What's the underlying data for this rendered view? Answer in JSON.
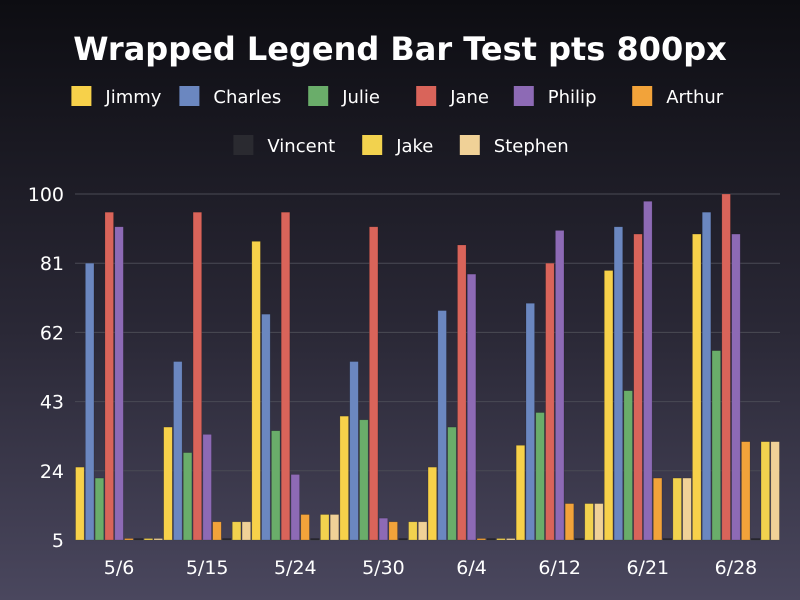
{
  "chart_data": {
    "type": "bar",
    "title": "Wrapped Legend Bar Test pts 800px",
    "xlabel": "",
    "ylabel": "",
    "ylim": [
      5,
      100
    ],
    "yticks": [
      5,
      24,
      43,
      62,
      81,
      100
    ],
    "grid": true,
    "legend_position": "top",
    "categories": [
      "5/6",
      "5/15",
      "5/24",
      "5/30",
      "6/4",
      "6/12",
      "6/21",
      "6/28"
    ],
    "series": [
      {
        "name": "Jimmy",
        "color": "#f7d14a",
        "values": [
          25,
          36,
          87,
          39,
          25,
          31,
          79,
          89
        ]
      },
      {
        "name": "Charles",
        "color": "#6b87c0",
        "values": [
          81,
          54,
          67,
          54,
          68,
          70,
          91,
          95
        ]
      },
      {
        "name": "Julie",
        "color": "#6aad6a",
        "values": [
          22,
          29,
          35,
          38,
          36,
          40,
          46,
          57
        ]
      },
      {
        "name": "Jane",
        "color": "#d9645a",
        "values": [
          95,
          95,
          95,
          91,
          86,
          81,
          89,
          100
        ]
      },
      {
        "name": "Philip",
        "color": "#8d6ab5",
        "values": [
          91,
          34,
          23,
          11,
          78,
          90,
          98,
          89
        ]
      },
      {
        "name": "Arthur",
        "color": "#f2a33a",
        "values": [
          5,
          10,
          12,
          10,
          5,
          15,
          22,
          32
        ]
      },
      {
        "name": "Vincent",
        "color": "#2a2a30",
        "values": [
          5,
          5,
          5,
          5,
          5,
          5,
          5,
          5
        ]
      },
      {
        "name": "Jake",
        "color": "#f2d24e",
        "values": [
          5,
          10,
          12,
          10,
          5,
          15,
          22,
          32
        ]
      },
      {
        "name": "Stephen",
        "color": "#f0d197",
        "values": [
          5,
          10,
          12,
          10,
          5,
          15,
          22,
          32
        ]
      }
    ]
  }
}
